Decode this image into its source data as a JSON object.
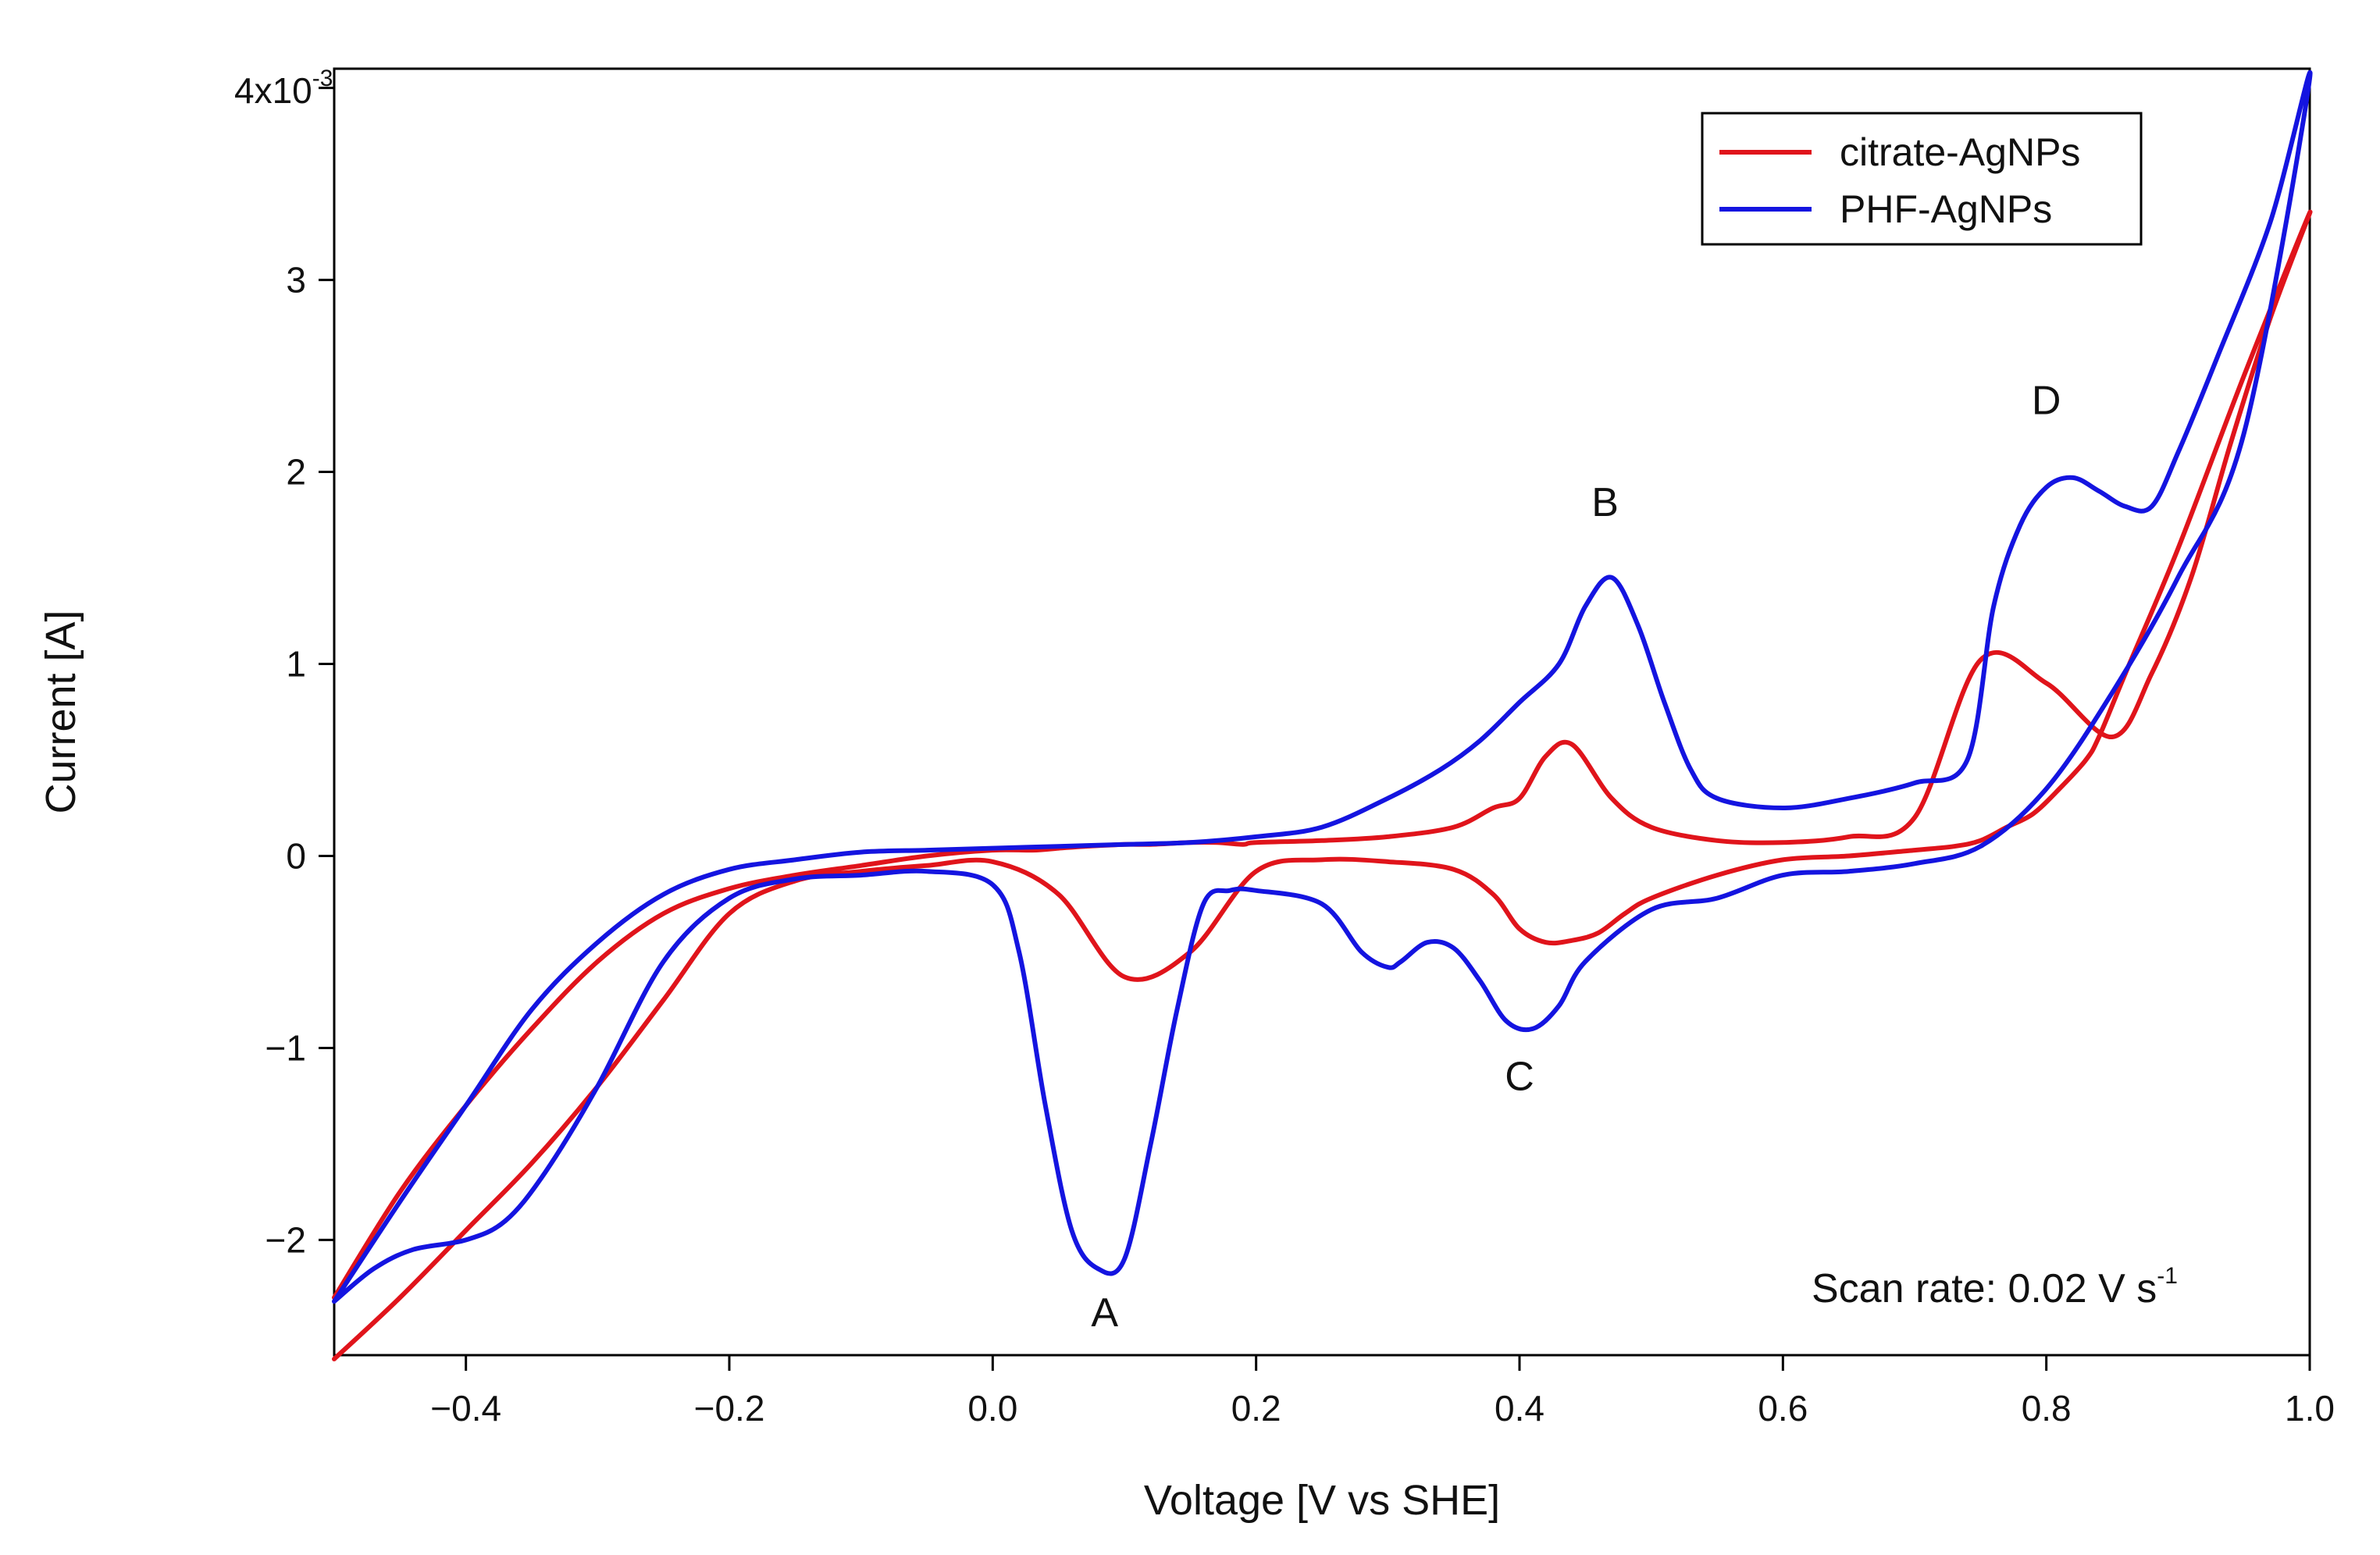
{
  "chart_data": {
    "type": "line",
    "title": "",
    "xlabel": "Voltage [V vs SHE]",
    "ylabel": "Current [A]",
    "xlim": [
      -0.5,
      1.0
    ],
    "ylim": [
      -2.6,
      4.1
    ],
    "y_multiplier_label": "x10",
    "y_multiplier_exp": "-3",
    "x_ticks": [
      {
        "value": -0.4,
        "label": "−0.4"
      },
      {
        "value": -0.2,
        "label": "−0.2"
      },
      {
        "value": 0.0,
        "label": "0.0"
      },
      {
        "value": 0.2,
        "label": "0.2"
      },
      {
        "value": 0.4,
        "label": "0.4"
      },
      {
        "value": 0.6,
        "label": "0.6"
      },
      {
        "value": 0.8,
        "label": "0.8"
      },
      {
        "value": 1.0,
        "label": "1.0"
      }
    ],
    "y_ticks": [
      {
        "value": 4,
        "label": "4"
      },
      {
        "value": 3,
        "label": "3"
      },
      {
        "value": 2,
        "label": "2"
      },
      {
        "value": 1,
        "label": "1"
      },
      {
        "value": 0,
        "label": "0"
      },
      {
        "value": -1,
        "label": "−1"
      },
      {
        "value": -2,
        "label": "−2"
      }
    ],
    "grid": false,
    "legend_position": "top-right",
    "series": [
      {
        "name": "citrate-AgNPs",
        "color": "#e0141b",
        "x": [
          -0.5,
          -0.45,
          -0.4,
          -0.35,
          -0.3,
          -0.25,
          -0.2,
          -0.15,
          -0.1,
          -0.05,
          0.0,
          0.05,
          0.1,
          0.15,
          0.2,
          0.25,
          0.3,
          0.35,
          0.38,
          0.4,
          0.42,
          0.44,
          0.46,
          0.48,
          0.5,
          0.55,
          0.6,
          0.65,
          0.7,
          0.73,
          0.75,
          0.77,
          0.79,
          0.81,
          0.83,
          0.84,
          0.86,
          0.9,
          0.95,
          1.0,
          0.97,
          0.94,
          0.91,
          0.88,
          0.85,
          0.8,
          0.75,
          0.7,
          0.65,
          0.6,
          0.55,
          0.5,
          0.47,
          0.44,
          0.42,
          0.4,
          0.38,
          0.35,
          0.3,
          0.25,
          0.2,
          0.19,
          0.17,
          0.15,
          0.12,
          0.1,
          0.07,
          0.05,
          0.03,
          0.0,
          -0.05,
          -0.1,
          -0.15,
          -0.2,
          -0.25,
          -0.3,
          -0.35,
          -0.4,
          -0.45,
          -0.5
        ],
        "values": [
          -2.62,
          -2.3,
          -1.95,
          -1.6,
          -1.2,
          -0.75,
          -0.3,
          -0.13,
          -0.08,
          -0.05,
          -0.03,
          -0.2,
          -0.63,
          -0.5,
          -0.08,
          -0.02,
          -0.03,
          -0.07,
          -0.2,
          -0.38,
          -0.45,
          -0.44,
          -0.4,
          -0.3,
          -0.22,
          -0.1,
          -0.02,
          0.0,
          0.03,
          0.05,
          0.08,
          0.15,
          0.22,
          0.35,
          0.5,
          0.62,
          0.95,
          1.6,
          2.5,
          3.35,
          2.8,
          2.15,
          1.45,
          0.95,
          0.62,
          0.9,
          1.02,
          0.2,
          0.1,
          0.07,
          0.08,
          0.15,
          0.3,
          0.58,
          0.52,
          0.3,
          0.25,
          0.15,
          0.1,
          0.08,
          0.07,
          0.06,
          0.07,
          0.07,
          0.06,
          0.06,
          0.05,
          0.04,
          0.03,
          0.03,
          0.0,
          -0.05,
          -0.1,
          -0.17,
          -0.3,
          -0.55,
          -0.9,
          -1.3,
          -1.75,
          -2.3
        ]
      },
      {
        "name": "PHF-AgNPs",
        "color": "#1414e0",
        "x": [
          -0.5,
          -0.47,
          -0.44,
          -0.4,
          -0.37,
          -0.34,
          -0.3,
          -0.25,
          -0.2,
          -0.15,
          -0.1,
          -0.05,
          0.0,
          0.02,
          0.04,
          0.06,
          0.08,
          0.1,
          0.12,
          0.14,
          0.16,
          0.18,
          0.2,
          0.25,
          0.28,
          0.3,
          0.31,
          0.33,
          0.35,
          0.37,
          0.39,
          0.41,
          0.43,
          0.45,
          0.5,
          0.55,
          0.6,
          0.65,
          0.7,
          0.75,
          0.8,
          0.85,
          0.9,
          0.95,
          1.0,
          0.97,
          0.93,
          0.9,
          0.88,
          0.86,
          0.84,
          0.82,
          0.8,
          0.78,
          0.76,
          0.74,
          0.7,
          0.65,
          0.6,
          0.55,
          0.53,
          0.51,
          0.49,
          0.47,
          0.45,
          0.43,
          0.4,
          0.37,
          0.34,
          0.3,
          0.25,
          0.2,
          0.15,
          0.1,
          0.05,
          0.0,
          -0.05,
          -0.1,
          -0.15,
          -0.2,
          -0.25,
          -0.3,
          -0.35,
          -0.4,
          -0.45,
          -0.5
        ],
        "values": [
          -2.32,
          -2.15,
          -2.05,
          -2.0,
          -1.9,
          -1.65,
          -1.2,
          -0.55,
          -0.22,
          -0.12,
          -0.1,
          -0.08,
          -0.15,
          -0.5,
          -1.3,
          -1.95,
          -2.15,
          -2.1,
          -1.5,
          -0.8,
          -0.25,
          -0.18,
          -0.18,
          -0.25,
          -0.5,
          -0.58,
          -0.55,
          -0.45,
          -0.48,
          -0.65,
          -0.86,
          -0.9,
          -0.78,
          -0.55,
          -0.28,
          -0.22,
          -0.1,
          -0.08,
          -0.04,
          0.05,
          0.35,
          0.85,
          1.45,
          2.2,
          4.05,
          3.3,
          2.6,
          2.1,
          1.82,
          1.82,
          1.9,
          1.97,
          1.92,
          1.72,
          1.3,
          0.5,
          0.38,
          0.3,
          0.25,
          0.3,
          0.45,
          0.8,
          1.2,
          1.45,
          1.3,
          1.0,
          0.8,
          0.6,
          0.45,
          0.3,
          0.15,
          0.1,
          0.07,
          0.06,
          0.05,
          0.04,
          0.03,
          0.02,
          -0.02,
          -0.07,
          -0.2,
          -0.45,
          -0.8,
          -1.3,
          -1.8,
          -2.32
        ]
      }
    ],
    "annotations": [
      {
        "text": "A",
        "x": 0.085,
        "y": -2.45
      },
      {
        "text": "B",
        "x": 0.465,
        "y": 1.77
      },
      {
        "text": "C",
        "x": 0.4,
        "y": -1.22
      },
      {
        "text": "D",
        "x": 0.8,
        "y": 2.3
      }
    ],
    "note": {
      "text": "Scan rate: 0.02 V s",
      "exp": "-1"
    }
  }
}
